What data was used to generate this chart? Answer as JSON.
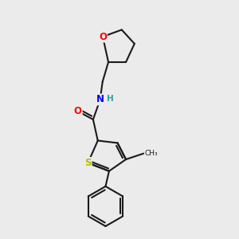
{
  "bg_color": "#ebebeb",
  "bond_color": "#1a1a1a",
  "bond_width": 1.5,
  "atom_colors": {
    "O": "#ff0000",
    "N": "#0000ff",
    "S": "#bbbb00",
    "C": "#1a1a1a",
    "H": "#2aa198"
  },
  "font_size": 8.5
}
